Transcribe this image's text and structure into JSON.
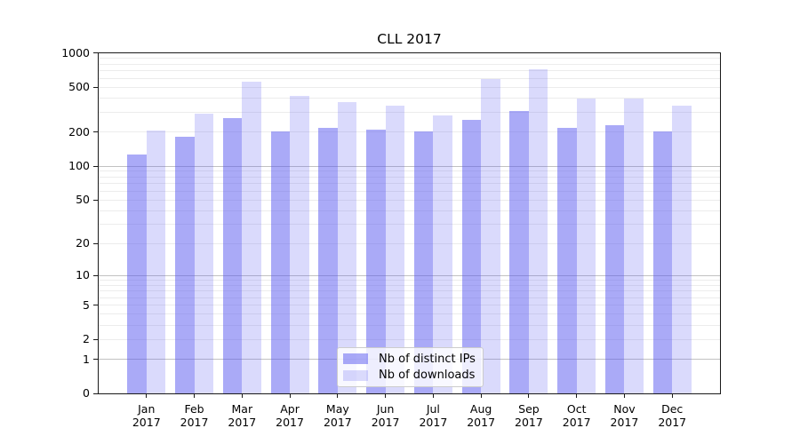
{
  "title": "CLL 2017",
  "chart_data": {
    "type": "bar",
    "title": "CLL 2017",
    "xlabel": "",
    "ylabel": "",
    "yscale": "log1p",
    "ylim": [
      0,
      1000
    ],
    "yticks": [
      0,
      1,
      2,
      5,
      10,
      20,
      50,
      100,
      200,
      500,
      1000
    ],
    "grid": {
      "on": true,
      "orientation": "horizontal",
      "major": [
        1,
        10,
        100,
        1000
      ],
      "minor": [
        2,
        3,
        4,
        5,
        6,
        7,
        8,
        9,
        20,
        30,
        40,
        50,
        60,
        70,
        80,
        90,
        200,
        300,
        400,
        500,
        600,
        700,
        800,
        900
      ]
    },
    "legend_position": "lower center",
    "categories": [
      "Jan 2017",
      "Feb 2017",
      "Mar 2017",
      "Apr 2017",
      "May 2017",
      "Jun 2017",
      "Jul 2017",
      "Aug 2017",
      "Sep 2017",
      "Oct 2017",
      "Nov 2017",
      "Dec 2017"
    ],
    "series": [
      {
        "name": "Nb of distinct IPs",
        "color": "rgba(85,85,240,0.50)",
        "values": [
          128,
          182,
          268,
          202,
          220,
          212,
          202,
          257,
          310,
          218,
          232,
          203
        ]
      },
      {
        "name": "Nb of downloads",
        "color": "rgba(85,85,240,0.22)",
        "values": [
          208,
          290,
          558,
          420,
          372,
          345,
          282,
          592,
          726,
          400,
          401,
          346
        ]
      }
    ]
  },
  "style": {
    "background": "#ffffff",
    "bar_base_color": "#5555f0",
    "grid_major_color": "#c2c2c2",
    "grid_minor_color": "#ececec",
    "spine_color": "#1a1a1a",
    "text_color": "#000000",
    "legend_bg": "rgba(255,255,255,0.8)",
    "legend_border": "#cccccc"
  }
}
